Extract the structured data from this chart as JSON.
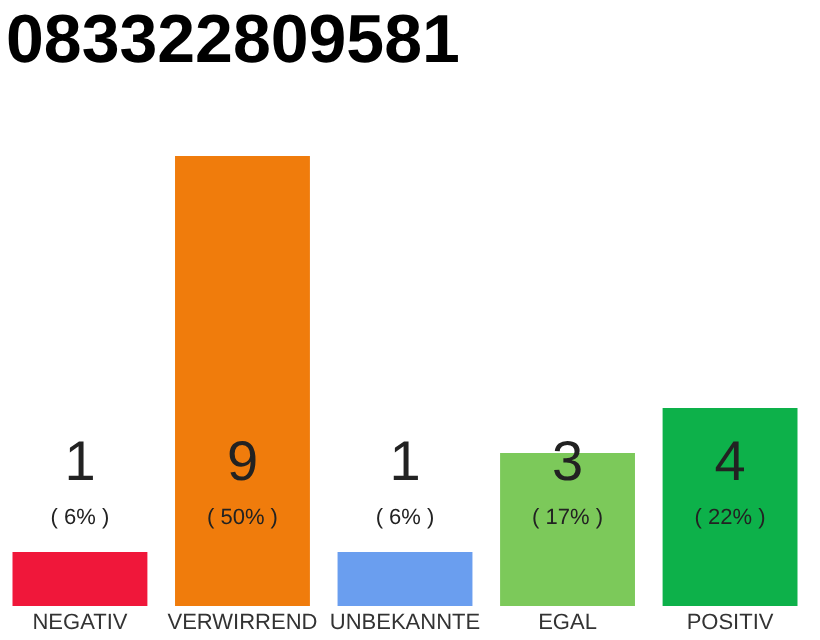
{
  "chart_data": {
    "type": "bar",
    "title": "083322809581",
    "categories": [
      "NEGATIV",
      "VERWIRREND",
      "UNBEKANNTE",
      "EGAL",
      "POSITIV"
    ],
    "values": [
      6,
      50,
      6,
      17,
      22
    ],
    "colors": [
      "#f0173a",
      "#f07c0c",
      "#6a9eef",
      "#7cc95a",
      "#0db14a"
    ],
    "tick_labels": "x",
    "grid": false,
    "value_labels": [
      "( 6% )",
      "( 50% )",
      "( 6% )",
      "( 17% )",
      "( 22% )"
    ],
    "annotations": [
      "1",
      "9",
      "1",
      "3",
      "4"
    ]
  }
}
